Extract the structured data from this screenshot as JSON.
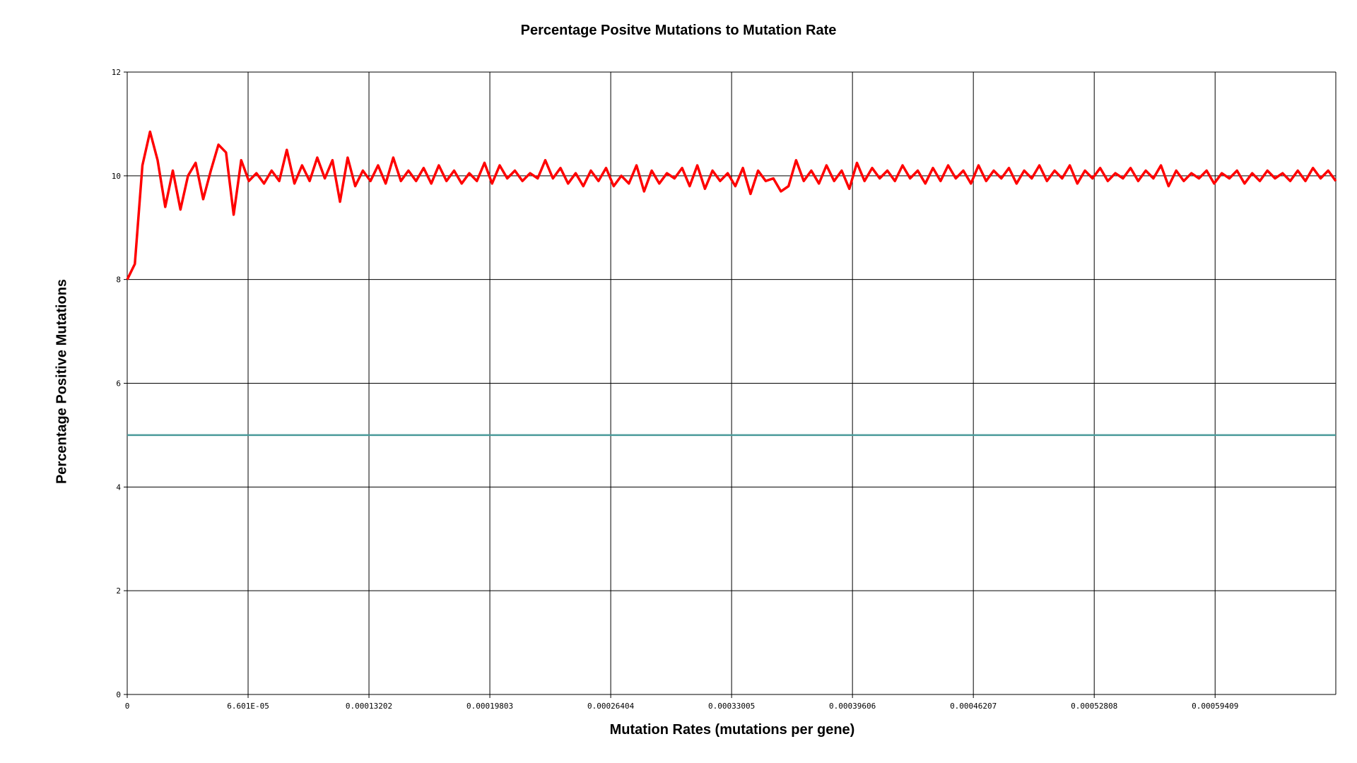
{
  "chart_data": {
    "type": "line",
    "title": "Percentage Positve Mutations to Mutation Rate",
    "xlabel": "Mutation Rates (mutations per gene)",
    "ylabel": "Percentage Positive Mutations",
    "xlim": [
      0,
      0.00066
    ],
    "ylim": [
      0,
      12
    ],
    "grid": true,
    "y_ticks": [
      0,
      2,
      4,
      6,
      8,
      10,
      12
    ],
    "x_ticks": [
      {
        "value": 0,
        "label": "0"
      },
      {
        "value": 6.601e-05,
        "label": "6.601E-05"
      },
      {
        "value": 0.00013202,
        "label": "0.00013202"
      },
      {
        "value": 0.00019803,
        "label": "0.00019803"
      },
      {
        "value": 0.00026404,
        "label": "0.00026404"
      },
      {
        "value": 0.00033005,
        "label": "0.00033005"
      },
      {
        "value": 0.00039606,
        "label": "0.00039606"
      },
      {
        "value": 0.00046207,
        "label": "0.00046207"
      },
      {
        "value": 0.00052808,
        "label": "0.00052808"
      },
      {
        "value": 0.00059409,
        "label": "0.00059409"
      }
    ],
    "series": [
      {
        "color": "#ff0000",
        "x_start": 0,
        "x_step": 6.6e-07,
        "values": [
          8.0,
          8.3,
          10.2,
          10.85,
          10.3,
          9.4,
          10.1,
          9.35,
          10.0,
          10.25,
          9.55,
          10.1,
          10.6,
          10.45,
          9.25,
          10.3,
          9.9,
          10.05,
          9.85,
          10.1,
          9.9,
          10.5,
          9.85,
          10.2,
          9.9,
          10.35,
          9.95,
          10.3,
          9.5,
          10.35,
          9.8,
          10.1,
          9.9,
          10.2,
          9.85,
          10.35,
          9.9,
          10.1,
          9.9,
          10.15,
          9.85,
          10.2,
          9.9,
          10.1,
          9.85,
          10.05,
          9.9,
          10.25,
          9.85,
          10.2,
          9.95,
          10.1,
          9.9,
          10.05,
          9.95,
          10.3,
          9.95,
          10.15,
          9.85,
          10.05,
          9.8,
          10.1,
          9.9,
          10.15,
          9.8,
          10.0,
          9.85,
          10.2,
          9.7,
          10.1,
          9.85,
          10.05,
          9.95,
          10.15,
          9.8,
          10.2,
          9.75,
          10.1,
          9.9,
          10.05,
          9.8,
          10.15,
          9.65,
          10.1,
          9.9,
          9.95,
          9.7,
          9.8,
          10.3,
          9.9,
          10.1,
          9.85,
          10.2,
          9.9,
          10.1,
          9.75,
          10.25,
          9.9,
          10.15,
          9.95,
          10.1,
          9.9,
          10.2,
          9.95,
          10.1,
          9.85,
          10.15,
          9.9,
          10.2,
          9.95,
          10.1,
          9.85,
          10.2,
          9.9,
          10.1,
          9.95,
          10.15,
          9.85,
          10.1,
          9.95,
          10.2,
          9.9,
          10.1,
          9.95,
          10.2,
          9.85,
          10.1,
          9.95,
          10.15,
          9.9,
          10.05,
          9.95,
          10.15,
          9.9,
          10.1,
          9.95,
          10.2,
          9.8,
          10.1,
          9.9,
          10.05,
          9.95,
          10.1,
          9.85,
          10.05,
          9.95,
          10.1,
          9.85,
          10.05,
          9.9,
          10.1,
          9.95,
          10.05,
          9.9,
          10.1,
          9.9,
          10.15,
          9.95,
          10.1,
          9.9
        ]
      },
      {
        "color": "#4a9a9a",
        "x_start": 0,
        "x_step": 0.00066,
        "values": [
          5.0,
          5.0
        ]
      }
    ]
  }
}
